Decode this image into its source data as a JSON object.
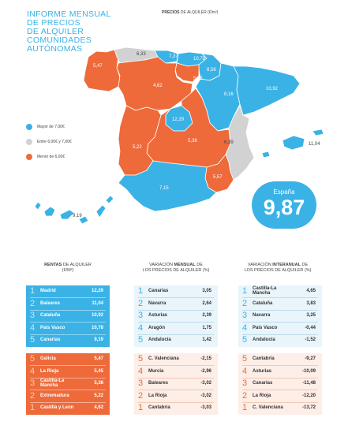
{
  "title": {
    "lines": [
      "INFORME MENSUAL",
      "DE PRECIOS",
      "DE ALQUILER",
      "COMUNIDADES",
      "AUTÓNOMAS"
    ]
  },
  "map": {
    "caption_bold": "PRECIOS",
    "caption_rest": " DE ALQUILER (€/m²)",
    "labels": {
      "galicia": "5,47",
      "asturias": "6,33",
      "cantabria": "7,37",
      "pais_vasco": "10,78",
      "navarra": "8,56",
      "castilla_leon": "4,62",
      "la_rioja": "5,45",
      "aragon": "8,16",
      "cataluna": "10,92",
      "madrid": "12,29",
      "extremadura": "5,22",
      "castilla_la_mancha": "5,38",
      "c_valenciana": "6,39",
      "baleares": "11,04",
      "andalucia": "7,15",
      "murcia": "5,57",
      "canarias": "9,19"
    },
    "colors": {
      "high": "#3ab2e6",
      "mid": "#d2d2d2",
      "low": "#ee6a3a"
    }
  },
  "legend": [
    {
      "label": "Mayor de 7,00€",
      "color": "#3ab2e6"
    },
    {
      "label": "Entre 6,00€ y 7,00€",
      "color": "#d2d2d2"
    },
    {
      "label": "Menor de 6,00€",
      "color": "#ee6a3a"
    }
  ],
  "spain": {
    "label": "España",
    "value": "9,87"
  },
  "columns": {
    "rentas": {
      "title_bold": "RENTAS",
      "title_rest": " DE ALQUILER",
      "title_line2": "(€/m²)"
    },
    "mensual": {
      "title_pre": "VARIACIÓN ",
      "title_bold": "MENSUAL",
      "title_rest": " DE",
      "title_line2": "LOS PRECIOS DE ALQUILER (%)"
    },
    "interanual": {
      "title_pre": "VARIACIÓN ",
      "title_bold": "INTERANUAL",
      "title_rest": " DE",
      "title_line2": "LOS PRECIOS DE ALQUILER (%)"
    }
  },
  "rentas_top": [
    {
      "rank": "1",
      "name": "Madrid",
      "value": "12,29"
    },
    {
      "rank": "2",
      "name": "Baleares",
      "value": "11,04"
    },
    {
      "rank": "3",
      "name": "Cataluña",
      "value": "10,92"
    },
    {
      "rank": "4",
      "name": "País Vasco",
      "value": "10,78"
    },
    {
      "rank": "5",
      "name": "Canarias",
      "value": "9,19"
    }
  ],
  "rentas_bottom": [
    {
      "rank": "5",
      "name": "Galicia",
      "value": "5,47"
    },
    {
      "rank": "4",
      "name": "La Rioja",
      "value": "5,45"
    },
    {
      "rank": "3",
      "name": "Castilla-La Mancha",
      "value": "5,38"
    },
    {
      "rank": "2",
      "name": "Extremadura",
      "value": "5,22"
    },
    {
      "rank": "1",
      "name": "Castilla y León",
      "value": "4,62"
    }
  ],
  "mensual_top": [
    {
      "rank": "1",
      "name": "Canarias",
      "value": "3,05"
    },
    {
      "rank": "2",
      "name": "Navarra",
      "value": "2,64"
    },
    {
      "rank": "3",
      "name": "Asturias",
      "value": "2,39"
    },
    {
      "rank": "4",
      "name": "Aragón",
      "value": "1,75"
    },
    {
      "rank": "5",
      "name": "Andalucía",
      "value": "1,42"
    }
  ],
  "mensual_bottom": [
    {
      "rank": "5",
      "name": "C. Valenciana",
      "value": "-2,15"
    },
    {
      "rank": "4",
      "name": "Murcia",
      "value": "-2,96"
    },
    {
      "rank": "3",
      "name": "Baleares",
      "value": "-3,02"
    },
    {
      "rank": "2",
      "name": "La Rioja",
      "value": "-3,02"
    },
    {
      "rank": "1",
      "name": "Cantabria",
      "value": "-3,03"
    }
  ],
  "interanual_top": [
    {
      "rank": "1",
      "name": "Castilla-La Mancha",
      "value": "4,65"
    },
    {
      "rank": "2",
      "name": "Cataluña",
      "value": "3,83"
    },
    {
      "rank": "3",
      "name": "Navarra",
      "value": "3,25"
    },
    {
      "rank": "4",
      "name": "País Vasco",
      "value": "-0,44"
    },
    {
      "rank": "5",
      "name": "Andalucía",
      "value": "-1,52"
    }
  ],
  "interanual_bottom": [
    {
      "rank": "5",
      "name": "Cantabria",
      "value": "-9,27"
    },
    {
      "rank": "4",
      "name": "Asturias",
      "value": "-10,09"
    },
    {
      "rank": "3",
      "name": "Canarias",
      "value": "-11,48"
    },
    {
      "rank": "2",
      "name": "La Rioja",
      "value": "-12,20"
    },
    {
      "rank": "1",
      "name": "C. Valenciana",
      "value": "-13,72"
    }
  ]
}
